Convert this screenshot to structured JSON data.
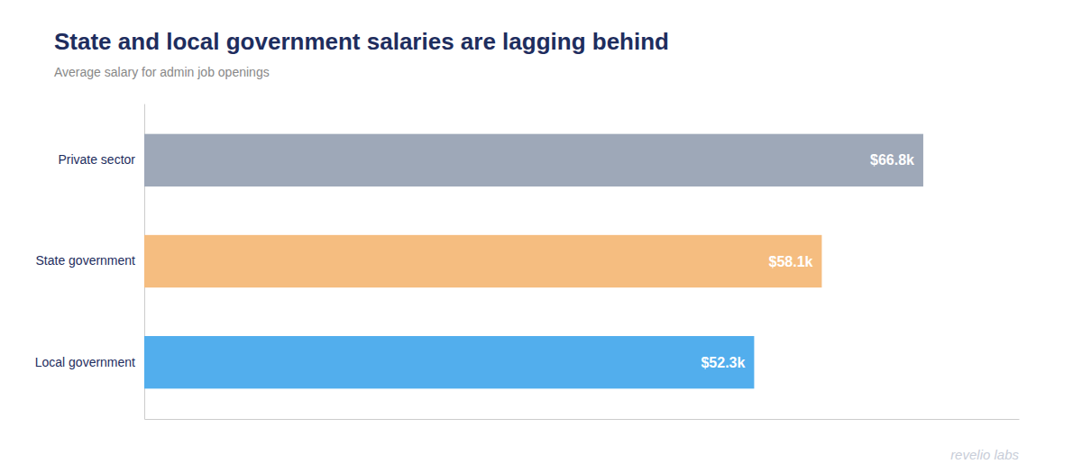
{
  "chart_data": {
    "type": "bar",
    "orientation": "horizontal",
    "title": "State and local government salaries are lagging behind",
    "subtitle": "Average salary for admin job openings",
    "annotations": [
      "revelio labs"
    ],
    "categories": [
      "Private sector",
      "State government",
      "Local government"
    ],
    "values": [
      66.8,
      58.1,
      52.3
    ],
    "value_labels": [
      "$66.8k",
      "$58.1k",
      "$52.3k"
    ],
    "colors": [
      "#9EA8B8",
      "#F5BD80",
      "#52AEED"
    ],
    "xlim": [
      0,
      75
    ],
    "data_labels": true,
    "tick_labels": "y",
    "grid": false
  }
}
